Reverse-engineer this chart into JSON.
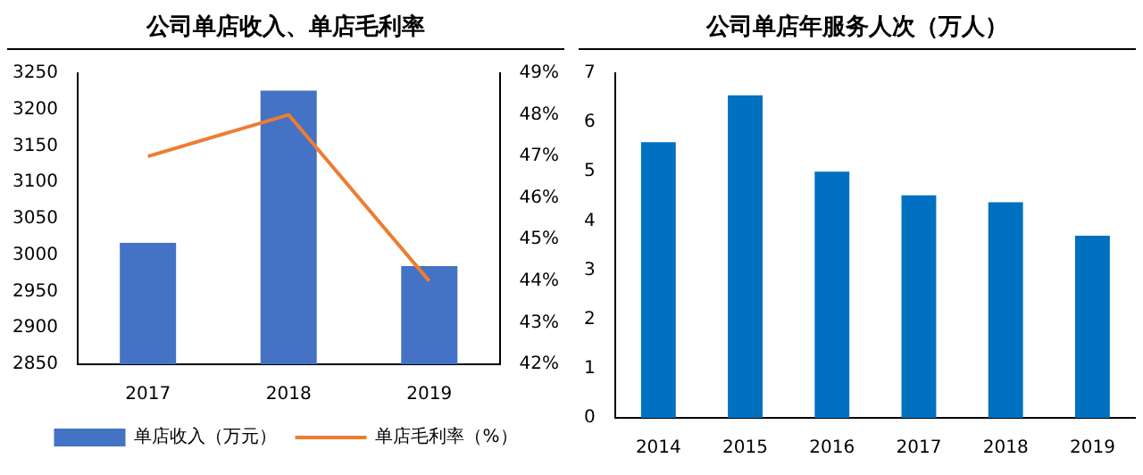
{
  "chart_data": [
    {
      "type": "bar",
      "title": "公司单店收入、单店毛利率",
      "categories": [
        "2017",
        "2018",
        "2019"
      ],
      "series": [
        {
          "name": "单店收入（万元）",
          "type": "bar",
          "color": "#4472c4",
          "values": [
            3017,
            3226,
            2985
          ]
        },
        {
          "name": "单店毛利率（%）",
          "type": "line",
          "axis": "y2",
          "color": "#ed7d31",
          "values": [
            47,
            48,
            44
          ]
        }
      ],
      "ylim": [
        2850,
        3250
      ],
      "yticks": [
        2850,
        2900,
        2950,
        3000,
        3050,
        3100,
        3150,
        3200,
        3250
      ],
      "y2lim": [
        42,
        49
      ],
      "y2ticks": [
        {
          "value": 42,
          "label": "42%"
        },
        {
          "value": 43,
          "label": "43%"
        },
        {
          "value": 44,
          "label": "44%"
        },
        {
          "value": 45,
          "label": "45%"
        },
        {
          "value": 46,
          "label": "46%"
        },
        {
          "value": 47,
          "label": "47%"
        },
        {
          "value": 48,
          "label": "48%"
        },
        {
          "value": 49,
          "label": "49%"
        }
      ],
      "legend": "bottom",
      "marker": "none",
      "grid": false
    },
    {
      "type": "bar",
      "title": "公司单店年服务人次（万人）",
      "categories": [
        "2014",
        "2015",
        "2016",
        "2017",
        "2018",
        "2019"
      ],
      "values": [
        5.6,
        6.55,
        5.0,
        4.52,
        4.38,
        3.7
      ],
      "color": "#0070c0",
      "ylim": [
        0,
        7
      ],
      "yticks": [
        0,
        1,
        2,
        3,
        4,
        5,
        6,
        7
      ],
      "grid": false
    }
  ]
}
